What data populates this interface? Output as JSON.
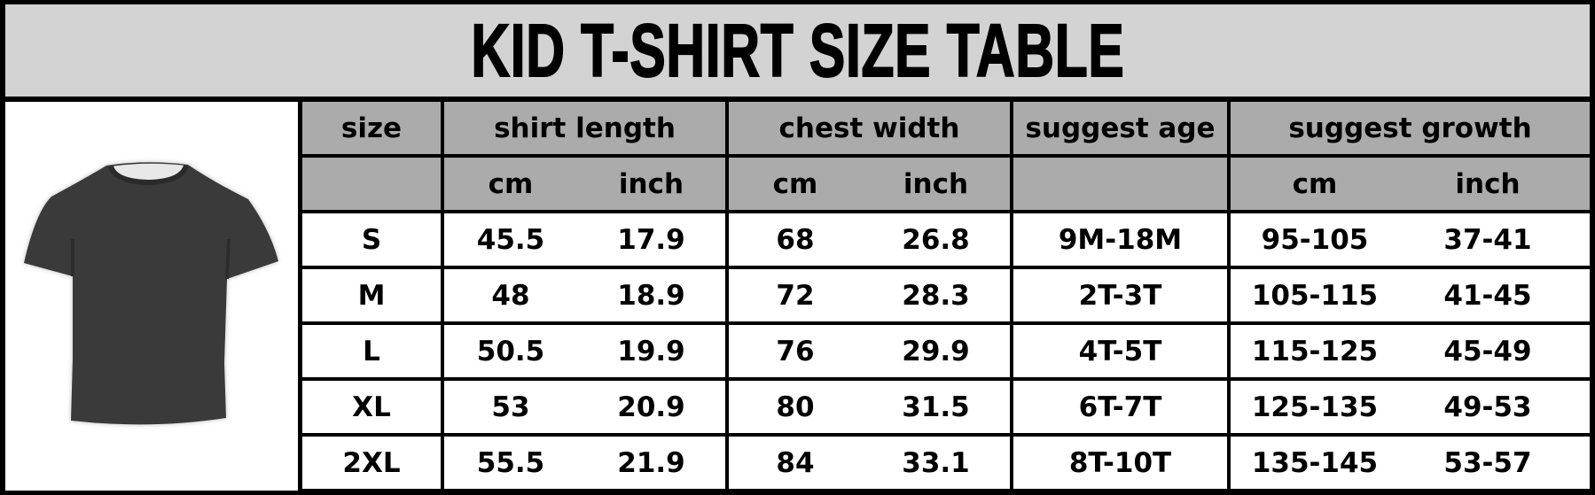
{
  "title": "KID T-SHIRT SIZE TABLE",
  "image": {
    "name": "t-shirt",
    "color": "#3a3a3a"
  },
  "colors": {
    "title_bg": "#d3d3d3",
    "header_bg": "#ababab",
    "border": "#000000"
  },
  "headers": {
    "size": "size",
    "shirt_length": "shirt length",
    "chest_width": "chest width",
    "suggest_age": "suggest age",
    "suggest_growth": "suggest growth"
  },
  "units": {
    "shirt_cm": "cm",
    "shirt_inch": "inch",
    "chest_cm": "cm",
    "chest_inch": "inch",
    "growth_cm": "cm",
    "growth_inch": "inch"
  },
  "rows": [
    {
      "size": "S",
      "length_cm": "45.5",
      "length_inch": "17.9",
      "chest_cm": "68",
      "chest_inch": "26.8",
      "age": "9M-18M",
      "growth_cm": "95-105",
      "growth_inch": "37-41"
    },
    {
      "size": "M",
      "length_cm": "48",
      "length_inch": "18.9",
      "chest_cm": "72",
      "chest_inch": "28.3",
      "age": "2T-3T",
      "growth_cm": "105-115",
      "growth_inch": "41-45"
    },
    {
      "size": "L",
      "length_cm": "50.5",
      "length_inch": "19.9",
      "chest_cm": "76",
      "chest_inch": "29.9",
      "age": "4T-5T",
      "growth_cm": "115-125",
      "growth_inch": "45-49"
    },
    {
      "size": "XL",
      "length_cm": "53",
      "length_inch": "20.9",
      "chest_cm": "80",
      "chest_inch": "31.5",
      "age": "6T-7T",
      "growth_cm": "125-135",
      "growth_inch": "49-53"
    },
    {
      "size": "2XL",
      "length_cm": "55.5",
      "length_inch": "21.9",
      "chest_cm": "84",
      "chest_inch": "33.1",
      "age": "8T-10T",
      "growth_cm": "135-145",
      "growth_inch": "53-57"
    }
  ]
}
